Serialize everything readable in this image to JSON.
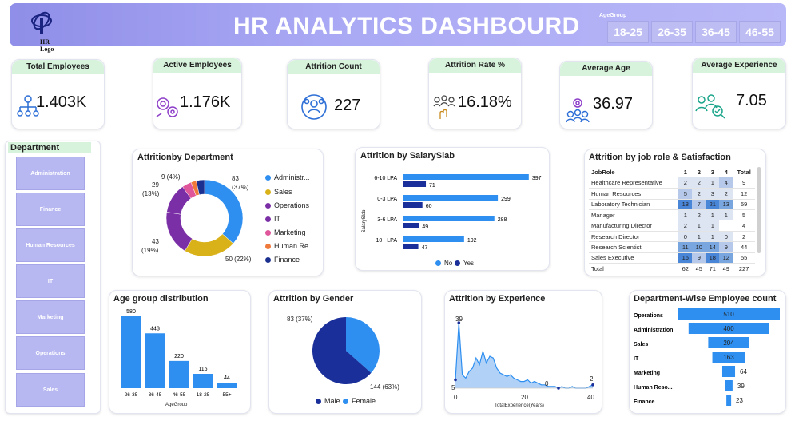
{
  "header": {
    "title": "HR ANALYTICS DASHBOURD",
    "logo_text": "HR Logo",
    "age_group_label": "AgeGroup",
    "age_groups": [
      "18-25",
      "26-35",
      "36-45",
      "46-55"
    ]
  },
  "kpis": [
    {
      "label": "Total Employees",
      "value": "1.403K",
      "icon": "org-chart-icon"
    },
    {
      "label": "Active Employees",
      "value": "1.176K",
      "icon": "gears-user-icon"
    },
    {
      "label": "Attrition Count",
      "value": "227",
      "icon": "people-cycle-icon"
    },
    {
      "label": "Attrition Rate %",
      "value": "16.18%",
      "icon": "hand-people-icon"
    },
    {
      "label": "Average Age",
      "value": "36.97",
      "icon": "group-gear-icon"
    },
    {
      "label": "Average Experience",
      "value": "7.05",
      "icon": "search-people-icon"
    }
  ],
  "department_filter": {
    "title": "Department",
    "items": [
      "Administration",
      "Finance",
      "Human Resources",
      "IT",
      "Marketing",
      "Operations",
      "Sales"
    ]
  },
  "attrition_by_department": {
    "title": "Attritionby Department",
    "legend": [
      "Administr...",
      "Sales",
      "Operations",
      "IT",
      "Marketing",
      "Human Re...",
      "Finance"
    ],
    "labels": [
      {
        "value": "83",
        "pct": "(37%)"
      },
      {
        "value": "50 (22%)"
      },
      {
        "value": "43",
        "pct": "(19%)"
      },
      {
        "value": "29",
        "pct": "(13%)"
      },
      {
        "value": "9 (4%)"
      }
    ],
    "colors": [
      "#2e8ff0",
      "#d9b21a",
      "#7b2fa6",
      "#7b2fa6",
      "#e0569b",
      "#f07a3c",
      "#1a2f8f"
    ]
  },
  "attrition_by_salary": {
    "title": "Attrition by SalarySlab",
    "ylabel": "SalarySlab",
    "legend": [
      "No",
      "Yes"
    ],
    "colors": {
      "no": "#2e8ff0",
      "yes": "#1a2f9a"
    }
  },
  "job_role": {
    "title": "Attrition by job role & Satisfaction",
    "headers": [
      "JobRole",
      "1",
      "2",
      "3",
      "4",
      "Total"
    ],
    "rows": [
      [
        "Healthcare Representative",
        "2",
        "2",
        "1",
        "4",
        "9"
      ],
      [
        "Human Resources",
        "5",
        "2",
        "3",
        "2",
        "12"
      ],
      [
        "Laboratory Technician",
        "18",
        "7",
        "21",
        "13",
        "59"
      ],
      [
        "Manager",
        "1",
        "2",
        "1",
        "1",
        "5"
      ],
      [
        "Manufacturing Director",
        "2",
        "1",
        "1",
        "",
        "4"
      ],
      [
        "Research Director",
        "0",
        "1",
        "1",
        "0",
        "2"
      ],
      [
        "Research Scientist",
        "11",
        "10",
        "14",
        "9",
        "44"
      ],
      [
        "Sales Executive",
        "16",
        "9",
        "18",
        "12",
        "55"
      ]
    ],
    "total": [
      "Total",
      "62",
      "45",
      "71",
      "49",
      "227"
    ]
  },
  "age_group_distribution": {
    "title": "Age group distribution",
    "xlabel": "AgeGroup"
  },
  "attrition_by_gender": {
    "title": "Attrition by Gender",
    "legend": [
      "Male",
      "Female"
    ],
    "labels": [
      "83 (37%)",
      "144 (63%)"
    ],
    "colors": {
      "male": "#1a2f9a",
      "female": "#2e8ff0"
    }
  },
  "attrition_by_experience": {
    "title": "Attrition by Experience",
    "xlabel": "TotalExperience(Years)",
    "ticks": [
      "0",
      "20",
      "40"
    ],
    "labels": [
      "39",
      "5",
      "0",
      "2"
    ]
  },
  "dept_employee_count": {
    "title": "Department-Wise Employee count"
  },
  "chart_data": [
    {
      "type": "pie",
      "title": "Attritionby Department",
      "categories": [
        "Administration",
        "Sales",
        "Operations",
        "IT",
        "Marketing",
        "Human Resources",
        "Finance"
      ],
      "values": [
        83,
        50,
        43,
        29,
        9,
        5,
        8
      ]
    },
    {
      "type": "bar",
      "title": "Attrition by SalarySlab",
      "categories": [
        "6-10 LPA",
        "0-3 LPA",
        "3-6 LPA",
        "10+ LPA"
      ],
      "series": [
        {
          "name": "No",
          "values": [
            397,
            299,
            288,
            192
          ]
        },
        {
          "name": "Yes",
          "values": [
            71,
            60,
            49,
            47
          ]
        }
      ],
      "ylabel": "SalarySlab"
    },
    {
      "type": "bar",
      "title": "Age group distribution",
      "categories": [
        "26-35",
        "36-45",
        "46-55",
        "18-25",
        "55+"
      ],
      "values": [
        580,
        443,
        220,
        116,
        44
      ],
      "xlabel": "AgeGroup"
    },
    {
      "type": "pie",
      "title": "Attrition by Gender",
      "categories": [
        "Male",
        "Female"
      ],
      "values": [
        144,
        83
      ]
    },
    {
      "type": "area",
      "title": "Attrition by Experience",
      "x": [
        0,
        1,
        2,
        3,
        4,
        5,
        6,
        7,
        8,
        9,
        10,
        11,
        12,
        13,
        14,
        15,
        16,
        17,
        18,
        19,
        20,
        21,
        22,
        23,
        24,
        25,
        26,
        27,
        28,
        29,
        30,
        31,
        32,
        33,
        34,
        35,
        36,
        37,
        38,
        39,
        40
      ],
      "values": [
        5,
        39,
        8,
        6,
        10,
        12,
        18,
        14,
        22,
        15,
        19,
        18,
        12,
        9,
        8,
        7,
        8,
        6,
        5,
        4,
        4,
        5,
        3,
        4,
        3,
        2,
        2,
        1,
        1,
        1,
        0,
        1,
        0,
        0,
        1,
        0,
        0,
        0,
        0,
        1,
        2
      ],
      "xlabel": "TotalExperience(Years)",
      "xlim": [
        0,
        40
      ]
    },
    {
      "type": "bar",
      "title": "Department-Wise Employee count",
      "categories": [
        "Operations",
        "Administration",
        "Sales",
        "IT",
        "Marketing",
        "Human Reso...",
        "Finance"
      ],
      "values": [
        510,
        400,
        204,
        163,
        64,
        39,
        23
      ]
    }
  ]
}
